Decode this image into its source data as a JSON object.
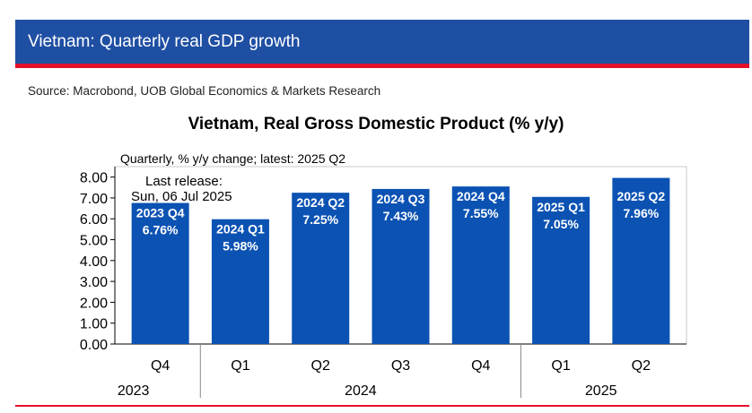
{
  "header": {
    "title": "Vietnam: Quarterly real GDP growth"
  },
  "source": "Source: Macrobond, UOB Global Economics & Markets Research",
  "colors": {
    "bar": "#0b52b3",
    "header": "#1f4fa3",
    "accent": "#e3102b"
  },
  "chart_data": {
    "type": "bar",
    "title": "Vietnam, Real Gross Domestic Product (% y/y)",
    "subtitle": "Quarterly, % y/y change; latest: 2025 Q2",
    "annotation": {
      "line1": "Last release:",
      "line2": "Sun, 06 Jul 2025"
    },
    "categories": [
      "Q4",
      "Q1",
      "Q2",
      "Q3",
      "Q4",
      "Q1",
      "Q2"
    ],
    "years": [
      {
        "label": "2023",
        "span": [
          0,
          0
        ]
      },
      {
        "label": "2024",
        "span": [
          1,
          4
        ]
      },
      {
        "label": "2025",
        "span": [
          5,
          6
        ]
      }
    ],
    "bar_labels": [
      [
        "2023 Q4",
        "6.76%"
      ],
      [
        "2024 Q1",
        "5.98%"
      ],
      [
        "2024 Q2",
        "7.25%"
      ],
      [
        "2024 Q3",
        "7.43%"
      ],
      [
        "2024 Q4",
        "7.55%"
      ],
      [
        "2025 Q1",
        "7.05%"
      ],
      [
        "2025 Q2",
        "7.96%"
      ]
    ],
    "values": [
      6.76,
      5.98,
      7.25,
      7.43,
      7.55,
      7.05,
      7.96
    ],
    "ylim": [
      0,
      8.5
    ],
    "yticks": [
      "0.00",
      "1.00",
      "2.00",
      "3.00",
      "4.00",
      "5.00",
      "6.00",
      "7.00",
      "8.00"
    ],
    "xlabel": "",
    "ylabel": ""
  }
}
